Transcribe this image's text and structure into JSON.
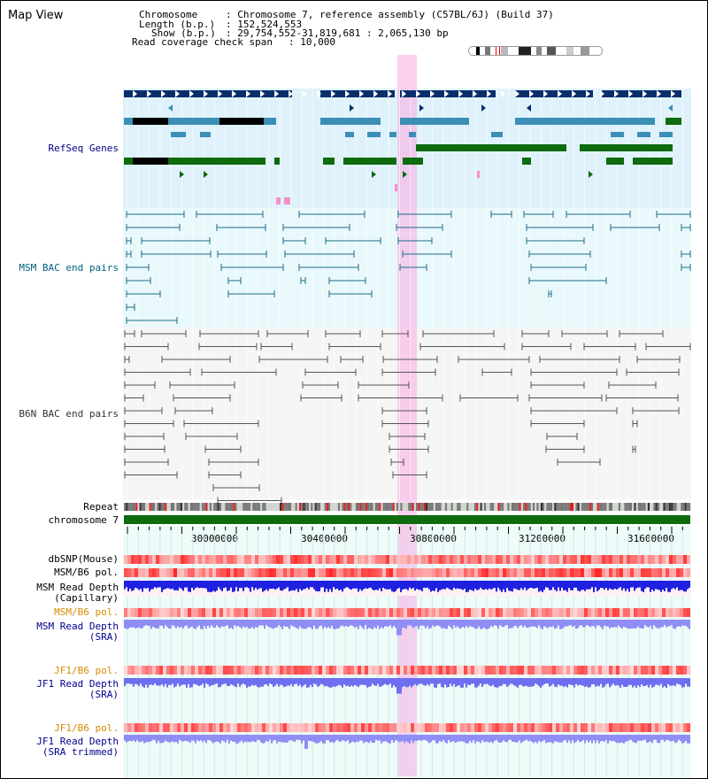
{
  "title": "Map View",
  "info": {
    "chromosome_key": "Chromosome",
    "chromosome_val": ": Chromosome 7, reference assembly (C57BL/6J) (Build 37)",
    "length_key": "Length (b.p.)",
    "length_val": ": 152,524,553",
    "show_key": "Show (b.p.)",
    "show_val": ": 29,754,552-31,819,681 : 2,065,130 bp",
    "span_key": "Read coverage check span",
    "span_val": ": 10,000"
  },
  "tracks": {
    "refseq": "RefSeq Genes",
    "msm_bac": "MSM BAC end pairs",
    "b6n_bac": "B6N BAC end pairs",
    "repeat": "Repeat",
    "chromosome": "chromosome 7"
  },
  "axis": {
    "ticks": [
      "30000000",
      "30400000",
      "30800000",
      "31200000",
      "31600000"
    ]
  },
  "rows": {
    "dbsnp": "dbSNP(Mouse)",
    "msm_pol1": "MSM/B6 pol.",
    "msm_depth_cap1": "MSM Read Depth",
    "msm_depth_cap2": "(Capillary)",
    "msm_pol2": "MSM/B6 pol.",
    "msm_sra1": "MSM Read Depth",
    "msm_sra2": "(SRA)",
    "jf1_pol1": "JF1/B6 pol.",
    "jf1_sra1": "JF1 Read Depth",
    "jf1_sra2": "(SRA)",
    "jf1_pol2": "JF1/B6 pol.",
    "jf1_trim1": "JF1 Read Depth",
    "jf1_trim2": "(SRA trimmed)"
  },
  "colors": {
    "refseq_label": "#000080",
    "msm_bac_label": "#006080",
    "b6n_label": "#333333",
    "navy_gene": "#0a2e6b",
    "teal_gene": "#3b8fb5",
    "green_gene": "#0e6b0e",
    "pink_gene": "#f490c8",
    "orange_label": "#d88a00",
    "highlight": "#f7c3e8"
  }
}
